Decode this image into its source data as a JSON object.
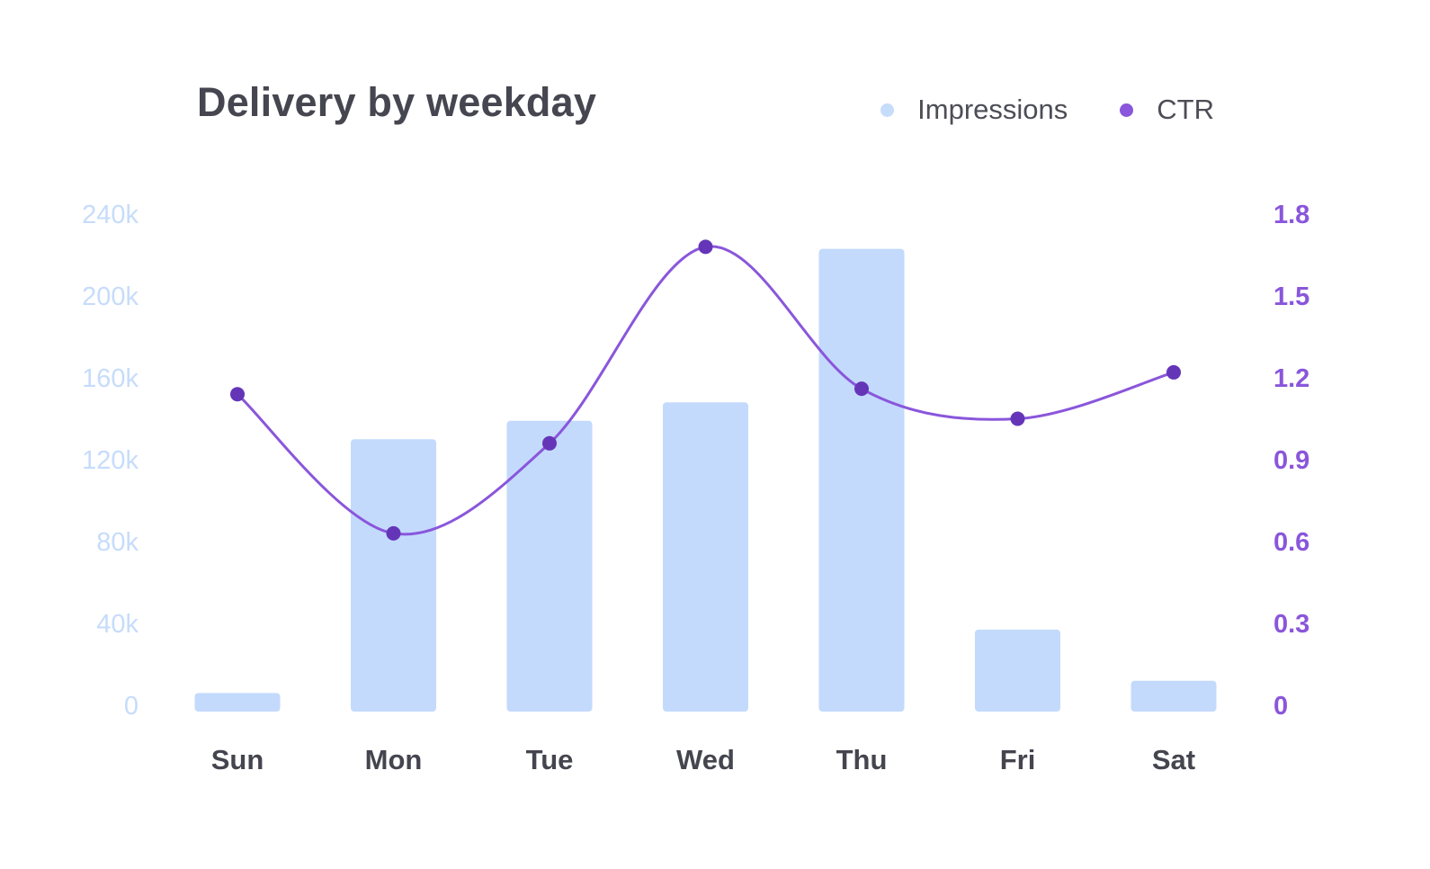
{
  "chart_data": {
    "type": "bar",
    "title": "Delivery by weekday",
    "categories": [
      "Sun",
      "Mon",
      "Tue",
      "Wed",
      "Thu",
      "Fri",
      "Sat"
    ],
    "series": [
      {
        "name": "Impressions",
        "type": "bar",
        "axis": "left",
        "color": "#c3dafd",
        "values": [
          6000,
          130000,
          139000,
          148000,
          223000,
          37000,
          12000
        ]
      },
      {
        "name": "CTR",
        "type": "line",
        "axis": "right",
        "color": "#8a56db",
        "marker_color": "#6535b8",
        "smooth": true,
        "values": [
          1.14,
          0.63,
          0.96,
          1.68,
          1.16,
          1.05,
          1.22
        ]
      }
    ],
    "y_left": {
      "ticks": [
        0,
        40000,
        80000,
        120000,
        160000,
        200000,
        240000
      ],
      "tick_labels": [
        "0",
        "40k",
        "80k",
        "120k",
        "160k",
        "200k",
        "240k"
      ],
      "range": [
        0,
        240000
      ],
      "color": "#c6dcfb"
    },
    "y_right": {
      "ticks": [
        0,
        0.3,
        0.6,
        0.9,
        1.2,
        1.5,
        1.8
      ],
      "tick_labels": [
        "0",
        "0.3",
        "0.6",
        "0.9",
        "1.2",
        "1.5",
        "1.8"
      ],
      "range": [
        0,
        1.8
      ],
      "color": "#8a56db"
    },
    "grid": false,
    "legend": "top-right"
  }
}
